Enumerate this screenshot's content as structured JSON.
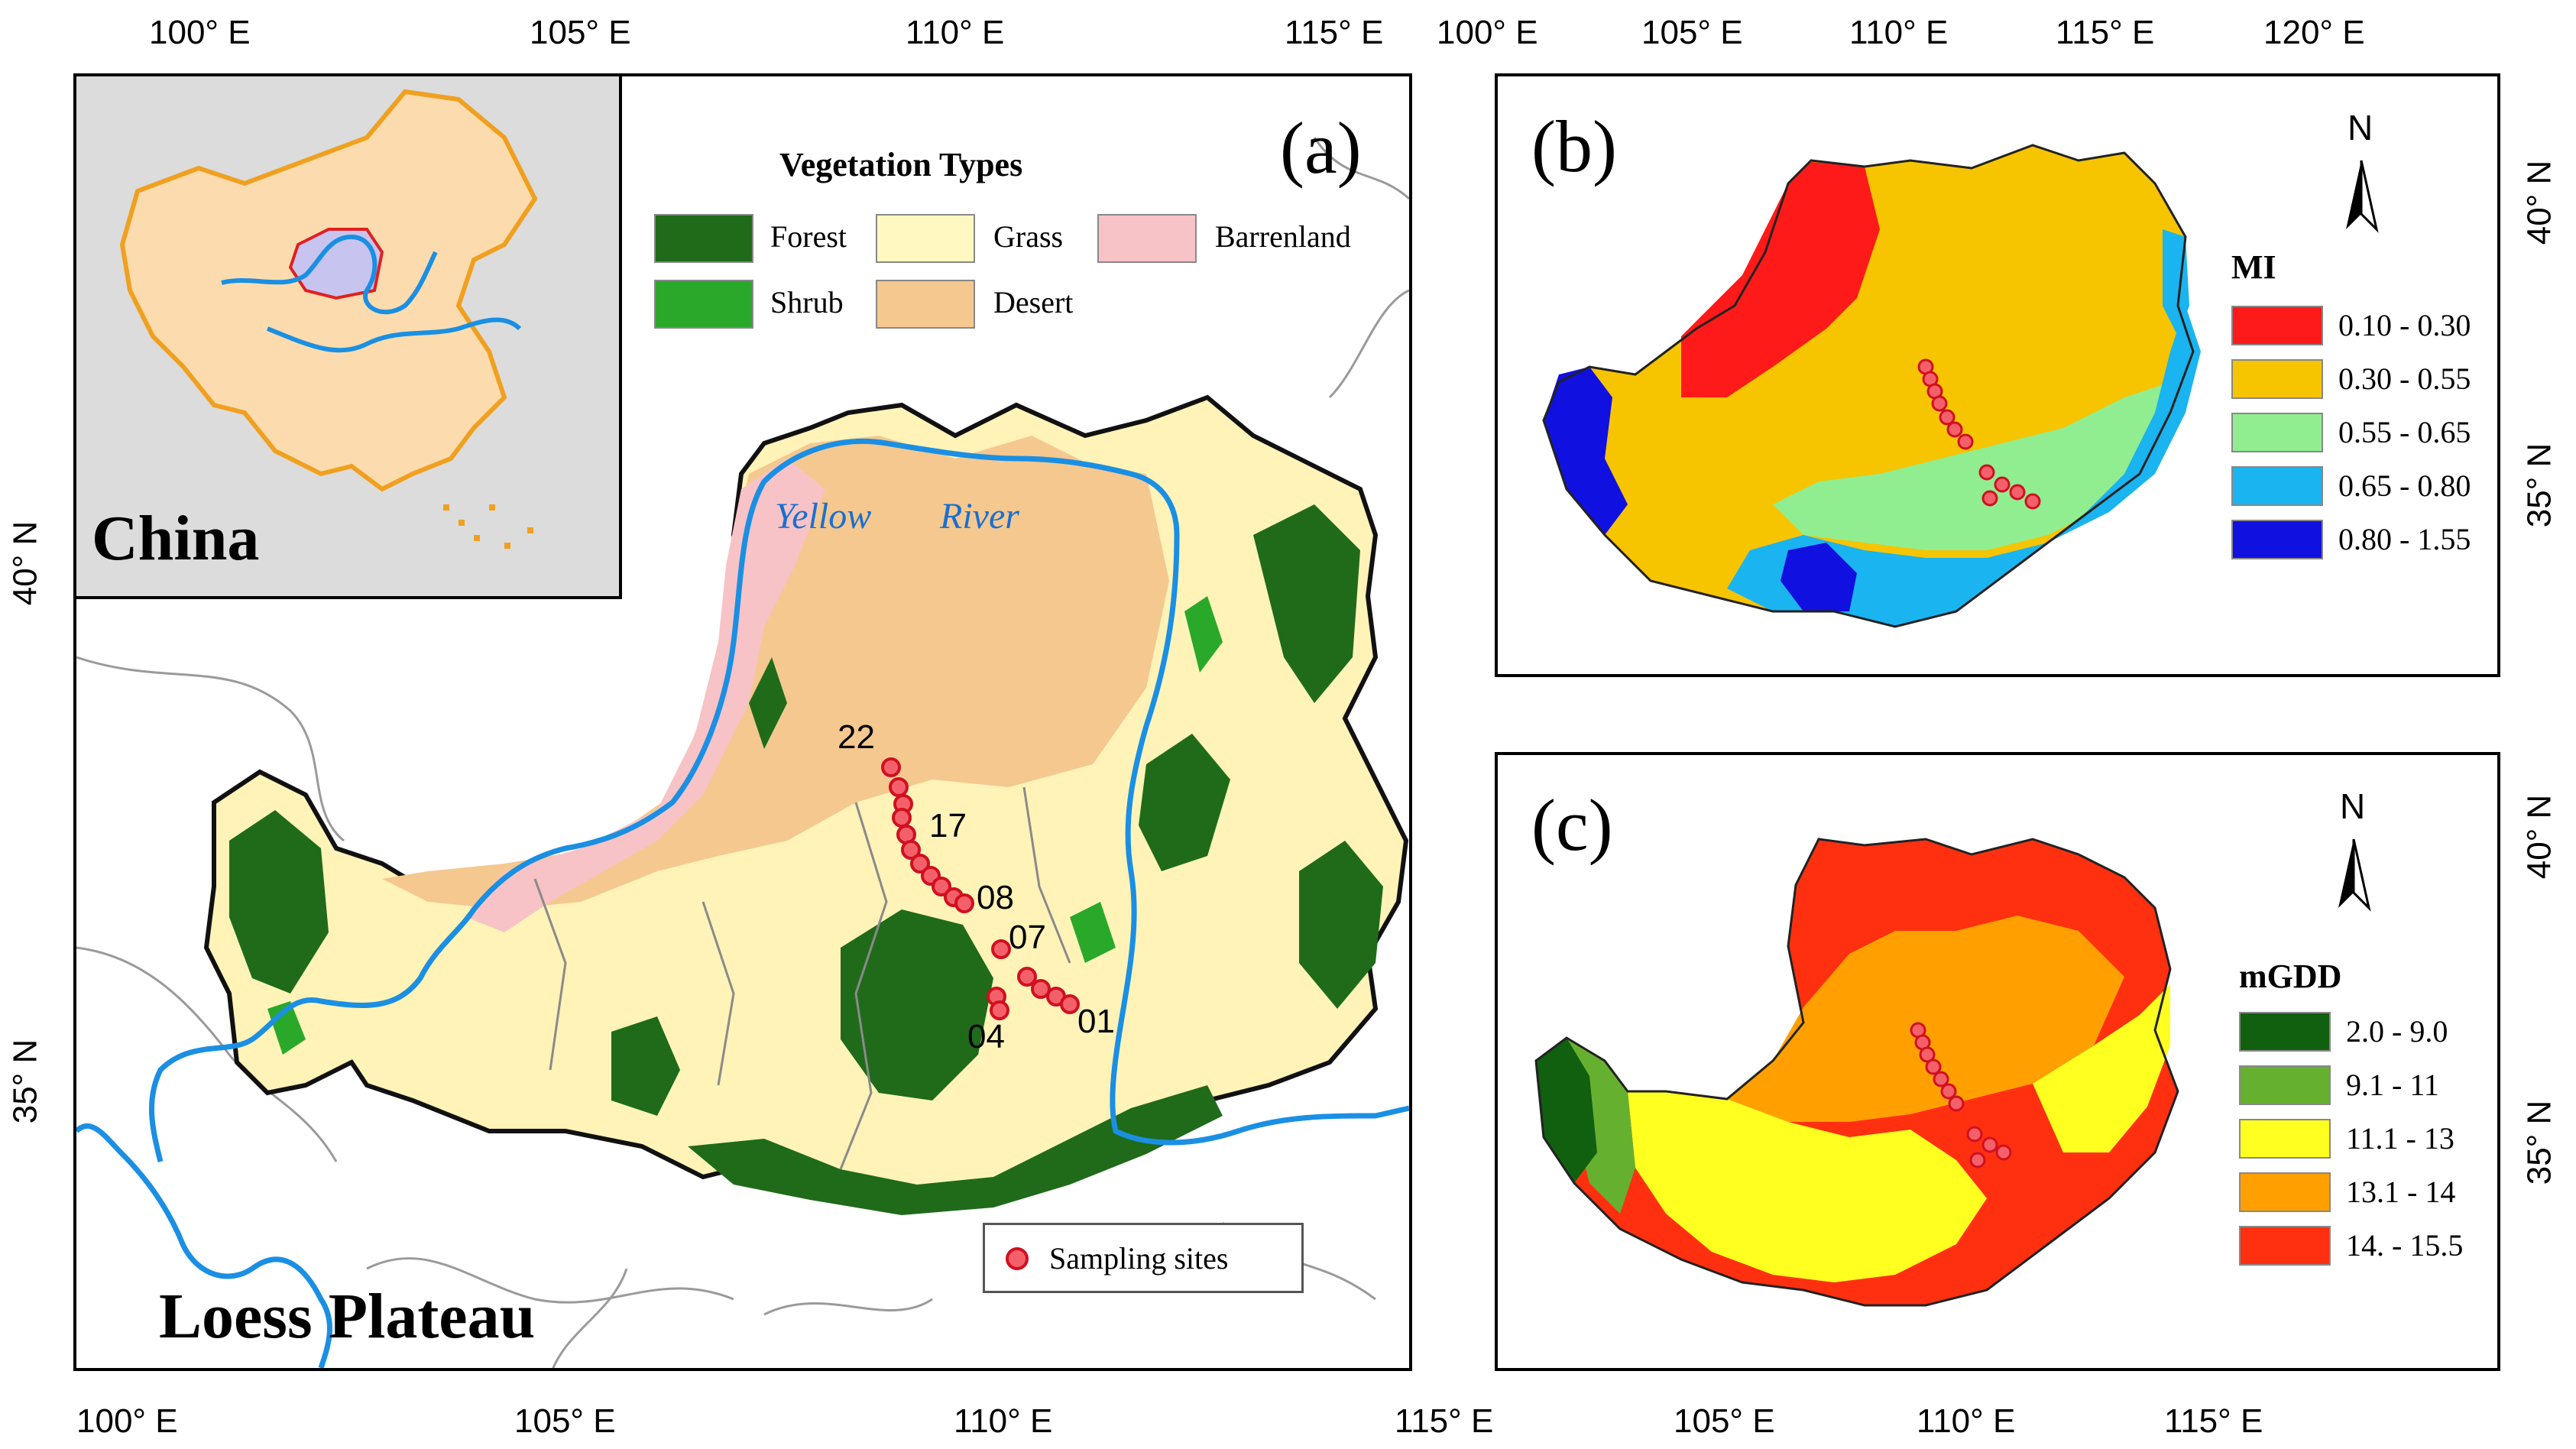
{
  "panel_a": {
    "label": "(a)",
    "top_ticks": [
      "100° E",
      "105° E",
      "110° E",
      "115° E"
    ],
    "bottom_ticks": [
      "100° E",
      "105° E",
      "110° E",
      "115° E"
    ],
    "left_ticks": [
      "40° N",
      "35° N"
    ],
    "inset_label": "China",
    "region_label": "Loess Plateau",
    "river_labels": [
      "Yellow",
      "River"
    ],
    "legend": {
      "title": "Vegetation Types",
      "items": [
        {
          "label": "Forest",
          "color": "#1f6b1a"
        },
        {
          "label": "Grass",
          "color": "#fff8c0"
        },
        {
          "label": "Barrenland",
          "color": "#f7c3c6"
        },
        {
          "label": "Shrub",
          "color": "#2aa82a"
        },
        {
          "label": "Desert",
          "color": "#f5c890"
        }
      ]
    },
    "sampling_legend": "Sampling sites",
    "site_labels": [
      "22",
      "17",
      "08",
      "07",
      "04",
      "01"
    ]
  },
  "panel_b": {
    "label": "(b)",
    "top_ticks": [
      "100° E",
      "105° E",
      "110° E",
      "115° E",
      "120° E"
    ],
    "right_ticks": [
      "40° N",
      "35° N"
    ],
    "north": "N",
    "legend_title": "MI",
    "legend": [
      {
        "label": "0.10 - 0.30",
        "color": "#ff1a1a"
      },
      {
        "label": "0.30 - 0.55",
        "color": "#f7c400"
      },
      {
        "label": "0.55 - 0.65",
        "color": "#90ee90"
      },
      {
        "label": "0.65 - 0.80",
        "color": "#1ab4f0"
      },
      {
        "label": "0.80 - 1.55",
        "color": "#1010e0"
      }
    ]
  },
  "panel_c": {
    "label": "(c)",
    "bottom_ticks": [
      "105° E",
      "110° E",
      "115° E"
    ],
    "right_ticks": [
      "40° N",
      "35° N"
    ],
    "north": "N",
    "legend_title": "mGDD",
    "legend": [
      {
        "label": "2.0 - 9.0",
        "color": "#106010"
      },
      {
        "label": "9.1 - 11",
        "color": "#66b030"
      },
      {
        "label": "11.1 - 13",
        "color": "#ffff20"
      },
      {
        "label": "13.1 - 14",
        "color": "#ffa000"
      },
      {
        "label": "14. - 15.5",
        "color": "#ff3010"
      }
    ]
  }
}
